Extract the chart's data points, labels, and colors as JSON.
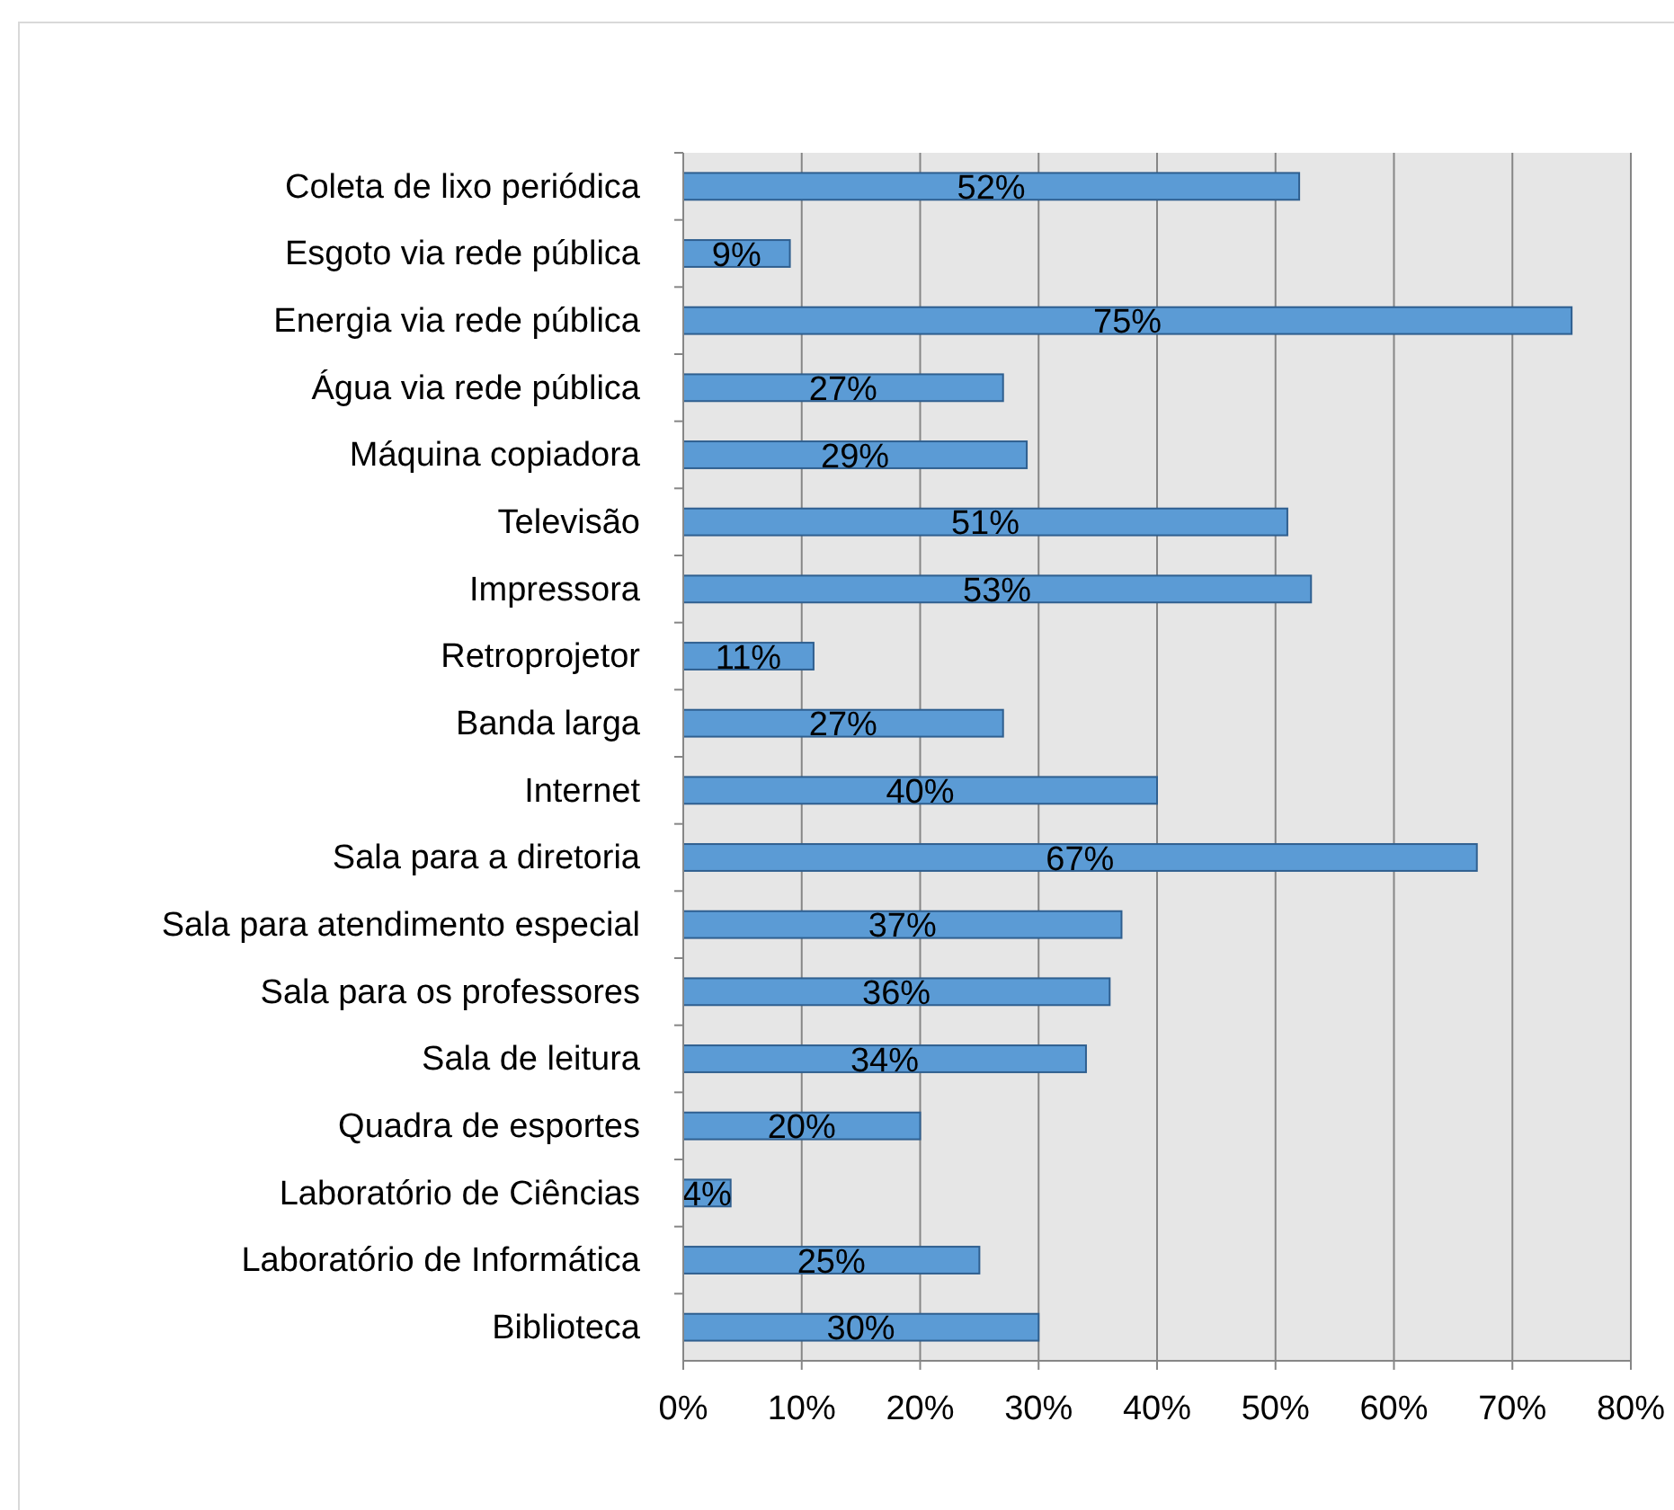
{
  "chart_data": {
    "type": "bar",
    "orientation": "horizontal",
    "categories": [
      "Coleta de lixo periódica",
      "Esgoto via rede pública",
      "Energia via rede pública",
      "Água via rede pública",
      "Máquina copiadora",
      "Televisão",
      "Impressora",
      "Retroprojetor",
      "Banda larga",
      "Internet",
      "Sala para a diretoria",
      "Sala para atendimento especial",
      "Sala para os professores",
      "Sala de leitura",
      "Quadra de esportes",
      "Laboratório de Ciências",
      "Laboratório de Informática",
      "Biblioteca"
    ],
    "values": [
      52,
      9,
      75,
      27,
      29,
      51,
      53,
      11,
      27,
      40,
      67,
      37,
      36,
      34,
      20,
      4,
      25,
      30
    ],
    "value_labels": [
      "52%",
      "9%",
      "75%",
      "27%",
      "29%",
      "51%",
      "53%",
      "11%",
      "27%",
      "40%",
      "67%",
      "37%",
      "36%",
      "34%",
      "20%",
      "4%",
      "25%",
      "30%"
    ],
    "color": "#5b9bd5",
    "xlim": [
      0,
      80
    ],
    "xticks": [
      {
        "value": 0,
        "label": "0%"
      },
      {
        "value": 10,
        "label": "10%"
      },
      {
        "value": 20,
        "label": "20%"
      },
      {
        "value": 30,
        "label": "30%"
      },
      {
        "value": 40,
        "label": "40%"
      },
      {
        "value": 50,
        "label": "50%"
      },
      {
        "value": 60,
        "label": "60%"
      },
      {
        "value": 70,
        "label": "70%"
      },
      {
        "value": 80,
        "label": "80%"
      }
    ],
    "grid": "x"
  }
}
